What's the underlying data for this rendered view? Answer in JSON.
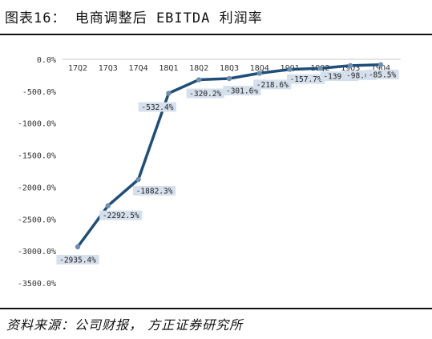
{
  "figure": {
    "title": "图表16： 电商调整后 EBITDA 利润率",
    "source": "资料来源：公司财报， 方正证券研究所"
  },
  "chart_data": {
    "type": "line",
    "title": "电商调整后 EBITDA 利润率",
    "categories": [
      "17Q2",
      "17Q3",
      "17Q4",
      "18Q1",
      "18Q2",
      "18Q3",
      "18Q4",
      "19Q1",
      "19Q2",
      "19Q3",
      "19Q4"
    ],
    "series": [
      {
        "values": [
          -2935.4,
          -2292.5,
          -1882.3,
          -532.4,
          -320.2,
          -301.6,
          -218.6,
          -157.7,
          -139.9,
          -98.6,
          -85.5
        ],
        "labels": [
          "-2935.4%",
          "-2292.5%",
          "-1882.3%",
          "-532.4%",
          "-320.2%",
          "-301.6%",
          "-218.6%",
          "-157.7%",
          "-139.9%",
          "-98.6%",
          "-85.5%"
        ]
      }
    ],
    "y_ticks": [
      "0.0%",
      "-500.0%",
      "-1000.0%",
      "-1500.0%",
      "-2000.0%",
      "-2500.0%",
      "-3000.0%",
      "-3500.0%"
    ],
    "ylim": [
      -3500,
      0
    ],
    "x_axis_position": "top",
    "grid": false,
    "legend": "none",
    "colors": {
      "line": "#1f4e79",
      "marker": "#6f8faf",
      "label_bg": "#d6e0ec"
    }
  }
}
